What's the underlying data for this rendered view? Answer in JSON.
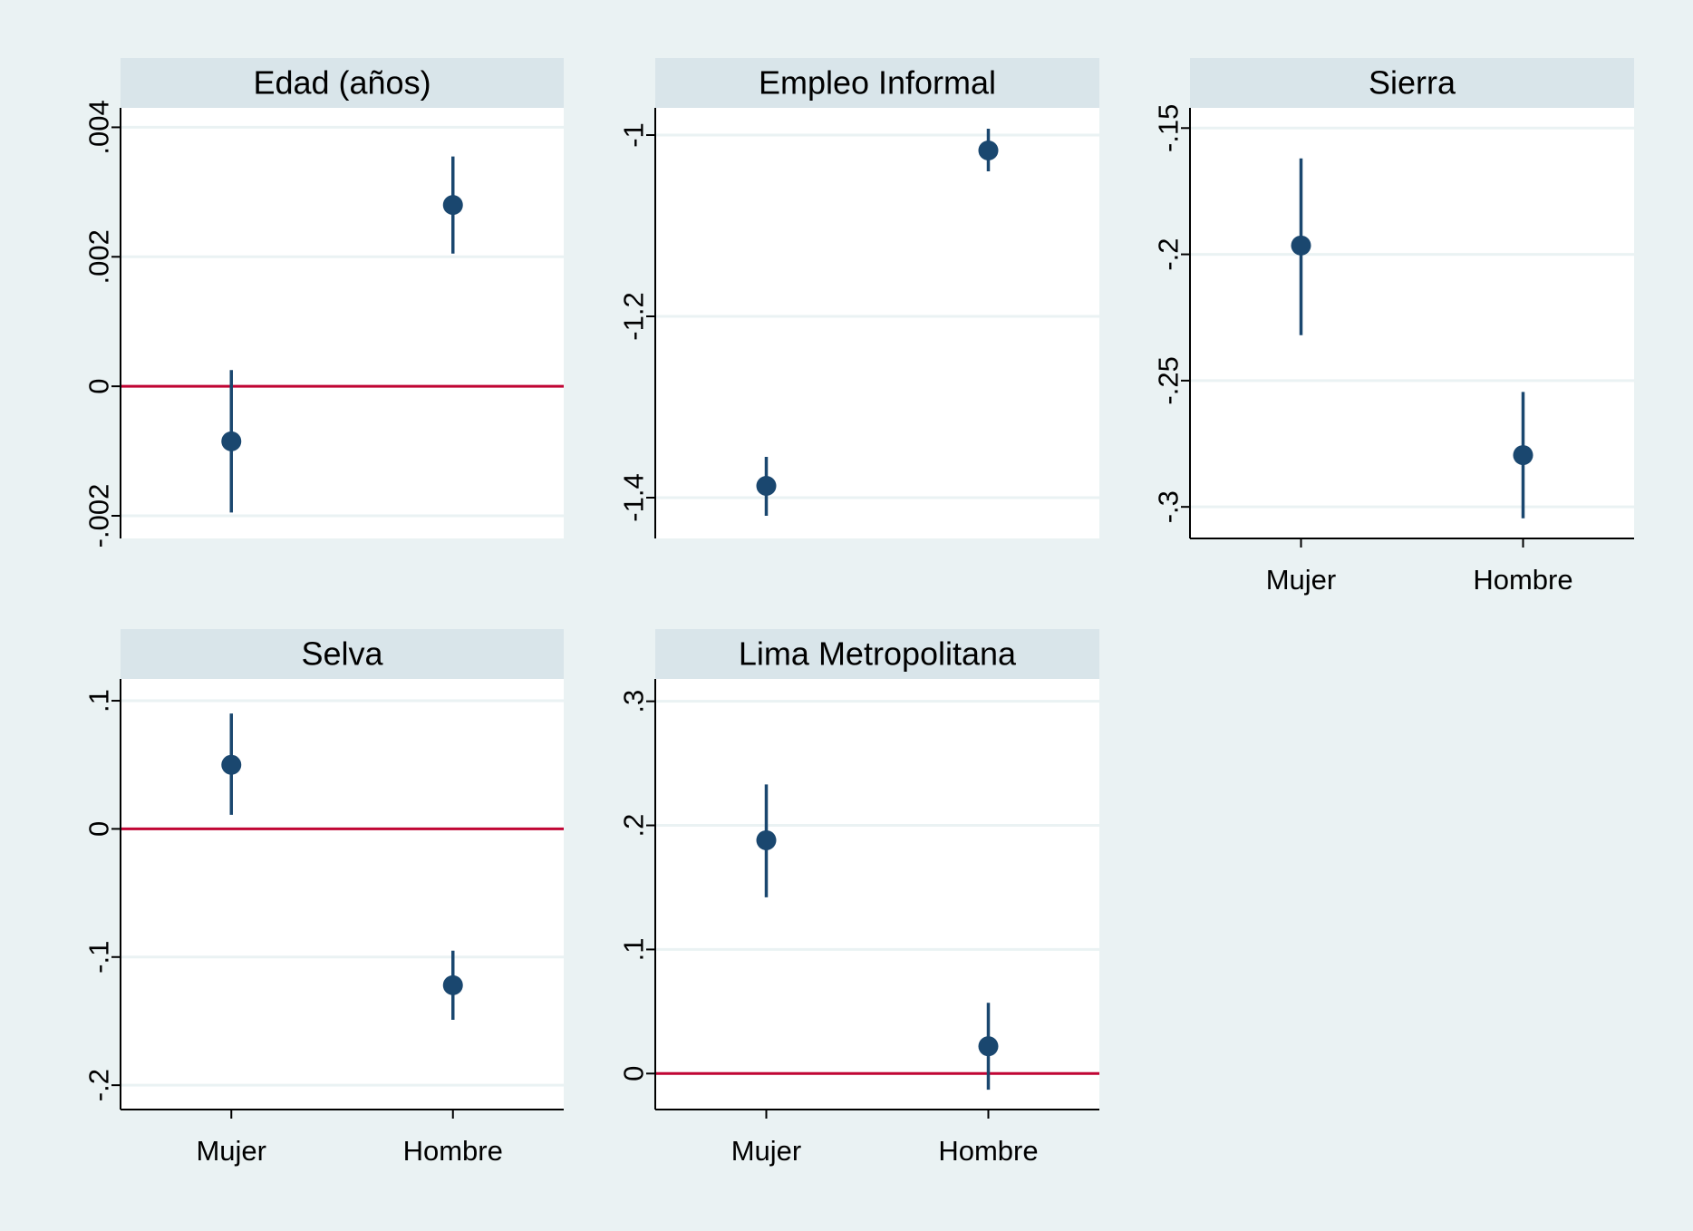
{
  "colors": {
    "background": "#eaf2f3",
    "plot_area": "#ffffff",
    "title_band": "#d9e5ea",
    "marker": "#1a476f",
    "zero_line": "#c10534",
    "grid": "#eaf2f3",
    "axis": "#000000"
  },
  "chart_data": [
    {
      "type": "scatter",
      "title": "Edad (años)",
      "categories": [
        "Mujer",
        "Hombre"
      ],
      "show_x_tick_labels": false,
      "estimates": [
        -0.00085,
        0.0028
      ],
      "ci_low": [
        -0.00195,
        0.00205
      ],
      "ci_high": [
        0.00025,
        0.00355
      ],
      "ylim": [
        -0.00235,
        0.0043
      ],
      "yticks": [
        -0.002,
        0,
        0.002,
        0.004
      ],
      "ytick_labels": [
        "-.002",
        "0",
        ".002",
        ".004"
      ],
      "zero_line": true,
      "grid": true
    },
    {
      "type": "scatter",
      "title": "Empleo Informal",
      "categories": [
        "Mujer",
        "Hombre"
      ],
      "show_x_tick_labels": false,
      "estimates": [
        -1.387,
        -1.017
      ],
      "ci_low": [
        -1.42,
        -1.04
      ],
      "ci_high": [
        -1.355,
        -0.993
      ],
      "ylim": [
        -1.445,
        -0.97
      ],
      "yticks": [
        -1.4,
        -1.2,
        -1.0
      ],
      "ytick_labels": [
        "-1.4",
        "-1.2",
        "-1"
      ],
      "zero_line": false,
      "grid": true
    },
    {
      "type": "scatter",
      "title": "Sierra",
      "categories": [
        "Mujer",
        "Hombre"
      ],
      "show_x_tick_labels": true,
      "estimates": [
        -0.1965,
        -0.2795
      ],
      "ci_low": [
        -0.232,
        -0.3045
      ],
      "ci_high": [
        -0.162,
        -0.2545
      ],
      "ylim": [
        -0.3125,
        -0.142
      ],
      "yticks": [
        -0.3,
        -0.25,
        -0.2,
        -0.15
      ],
      "ytick_labels": [
        "-.3",
        "-.25",
        "-.2",
        "-.15"
      ],
      "zero_line": false,
      "grid": true
    },
    {
      "type": "scatter",
      "title": "Selva",
      "categories": [
        "Mujer",
        "Hombre"
      ],
      "show_x_tick_labels": true,
      "estimates": [
        0.05,
        -0.122
      ],
      "ci_low": [
        0.011,
        -0.149
      ],
      "ci_high": [
        0.09,
        -0.095
      ],
      "ylim": [
        -0.219,
        0.117
      ],
      "yticks": [
        -0.2,
        -0.1,
        0,
        0.1
      ],
      "ytick_labels": [
        "-.2",
        "-.1",
        "0",
        ".1"
      ],
      "zero_line": true,
      "grid": true
    },
    {
      "type": "scatter",
      "title": "Lima Metropolitana",
      "categories": [
        "Mujer",
        "Hombre"
      ],
      "show_x_tick_labels": true,
      "estimates": [
        0.188,
        0.022
      ],
      "ci_low": [
        0.142,
        -0.013
      ],
      "ci_high": [
        0.233,
        0.057
      ],
      "ylim": [
        -0.029,
        0.318
      ],
      "yticks": [
        0,
        0.1,
        0.2,
        0.3
      ],
      "ytick_labels": [
        "0",
        ".1",
        ".2",
        ".3"
      ],
      "zero_line": true,
      "grid": true
    }
  ]
}
